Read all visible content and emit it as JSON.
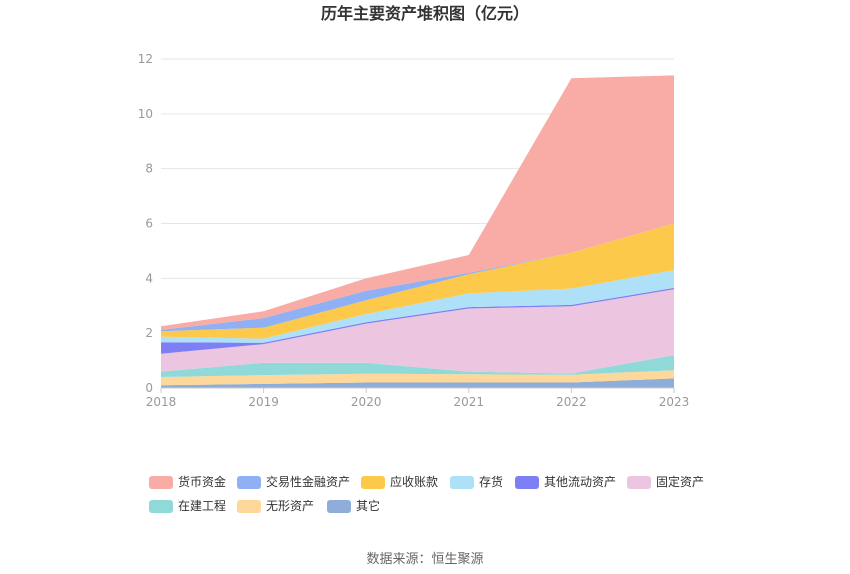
{
  "chart_data": {
    "type": "area",
    "stacked": true,
    "title": "历年主要资产堆积图（亿元）",
    "xlabel": "",
    "ylabel": "",
    "x": [
      "2018",
      "2019",
      "2020",
      "2021",
      "2022",
      "2023"
    ],
    "ylim": [
      0,
      12
    ],
    "yticks": [
      "0",
      "2",
      "4",
      "6",
      "8",
      "10",
      "12"
    ],
    "grid": true,
    "legend_position": "bottom",
    "series": [
      {
        "name": "其它",
        "color": "#8fadd9",
        "values": [
          0.1,
          0.15,
          0.2,
          0.2,
          0.2,
          0.35
        ]
      },
      {
        "name": "无形资产",
        "color": "#fdd89a",
        "values": [
          0.3,
          0.32,
          0.32,
          0.3,
          0.28,
          0.3
        ]
      },
      {
        "name": "在建工程",
        "color": "#8fd9d9",
        "values": [
          0.2,
          0.45,
          0.4,
          0.1,
          0.05,
          0.55
        ]
      },
      {
        "name": "固定资产",
        "color": "#ecc6e0",
        "values": [
          0.65,
          0.68,
          1.43,
          2.3,
          2.45,
          2.4
        ]
      },
      {
        "name": "其他流动资产",
        "color": "#7f7ff5",
        "values": [
          0.42,
          0.05,
          0.05,
          0.05,
          0.05,
          0.05
        ]
      },
      {
        "name": "存货",
        "color": "#aee0f7",
        "values": [
          0.2,
          0.15,
          0.3,
          0.5,
          0.6,
          0.65
        ]
      },
      {
        "name": "应收账款",
        "color": "#fdc94b",
        "values": [
          0.2,
          0.4,
          0.5,
          0.7,
          1.3,
          1.7
        ]
      },
      {
        "name": "交易性金融资产",
        "color": "#8fb0f5",
        "values": [
          0.05,
          0.35,
          0.35,
          0.05,
          0.0,
          0.0
        ]
      },
      {
        "name": "货币资金",
        "color": "#f9aca5",
        "values": [
          0.13,
          0.25,
          0.45,
          0.65,
          6.37,
          5.4
        ]
      }
    ],
    "legend_order": [
      "货币资金",
      "交易性金融资产",
      "应收账款",
      "存货",
      "其他流动资产",
      "固定资产",
      "在建工程",
      "无形资产",
      "其它"
    ]
  },
  "source": "数据来源：恒生聚源"
}
